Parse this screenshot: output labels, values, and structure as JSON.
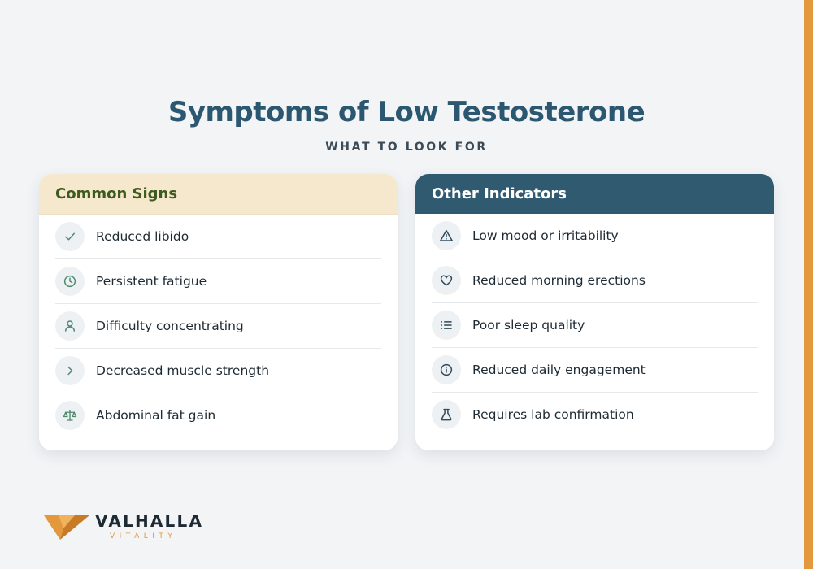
{
  "title": "Symptoms of Low Testosterone",
  "subtitle": "WHAT TO LOOK FOR",
  "cards": [
    {
      "heading": "Common Signs",
      "items": [
        {
          "icon": "check-icon",
          "label": "Reduced libido"
        },
        {
          "icon": "clock-icon",
          "label": "Persistent fatigue"
        },
        {
          "icon": "person-icon",
          "label": "Difficulty concentrating"
        },
        {
          "icon": "chevron-right-icon",
          "label": "Decreased muscle strength"
        },
        {
          "icon": "scale-icon",
          "label": "Abdominal fat gain"
        }
      ]
    },
    {
      "heading": "Other Indicators",
      "items": [
        {
          "icon": "warning-icon",
          "label": "Low mood or irritability"
        },
        {
          "icon": "heart-icon",
          "label": "Reduced morning erections"
        },
        {
          "icon": "list-icon",
          "label": "Poor sleep quality"
        },
        {
          "icon": "info-icon",
          "label": "Reduced daily engagement"
        },
        {
          "icon": "flask-icon",
          "label": "Requires lab confirmation"
        }
      ]
    }
  ],
  "logo": {
    "name": "VALHALLA",
    "tagline": "VITALITY"
  },
  "colors": {
    "title": "#2b5770",
    "accent": "#e3983d",
    "left_header_bg": "#f5e8cc",
    "left_header_text": "#3f5a1f",
    "right_header_bg": "#2f5a70",
    "left_icon": "#4f8a6d",
    "right_icon": "#2f4a5c",
    "background": "#f2f4f6"
  }
}
